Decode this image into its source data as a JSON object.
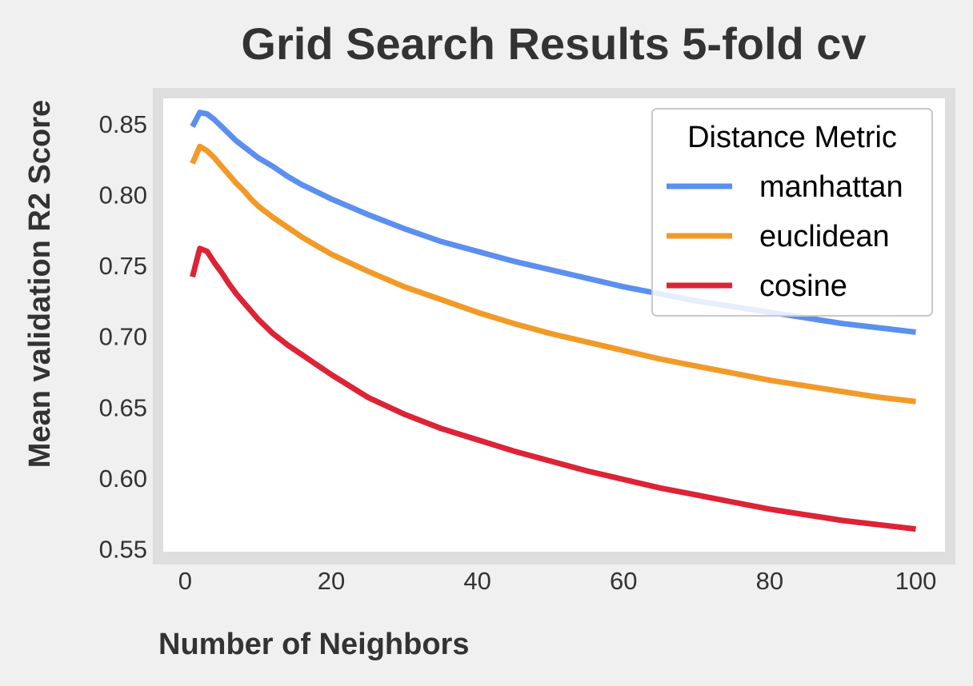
{
  "chart_data": {
    "type": "line",
    "title": "Grid Search Results 5-fold cv",
    "xlabel": "Number of Neighbors",
    "ylabel": "Mean validation R2 Score",
    "xlim": [
      -3,
      104
    ],
    "ylim": [
      0.548,
      0.868
    ],
    "xticks": [
      0,
      20,
      40,
      60,
      80,
      100
    ],
    "xtick_labels": [
      "0",
      "20",
      "40",
      "60",
      "80",
      "100"
    ],
    "yticks": [
      0.55,
      0.6,
      0.65,
      0.7,
      0.75,
      0.8,
      0.85
    ],
    "ytick_labels": [
      "0.55",
      "0.60",
      "0.65",
      "0.70",
      "0.75",
      "0.80",
      "0.85"
    ],
    "grid": false,
    "legend": {
      "title": "Distance Metric",
      "position": "top-right"
    },
    "x": [
      1,
      2,
      3,
      4,
      5,
      6,
      7,
      8,
      9,
      10,
      12,
      14,
      16,
      18,
      20,
      25,
      30,
      35,
      40,
      45,
      50,
      55,
      60,
      65,
      70,
      75,
      80,
      85,
      90,
      95,
      100
    ],
    "series": [
      {
        "name": "manhattan",
        "color": "#5b8ff0",
        "values": [
          0.848,
          0.858,
          0.857,
          0.853,
          0.848,
          0.843,
          0.838,
          0.834,
          0.83,
          0.826,
          0.82,
          0.813,
          0.807,
          0.802,
          0.797,
          0.786,
          0.776,
          0.767,
          0.76,
          0.753,
          0.747,
          0.741,
          0.735,
          0.73,
          0.725,
          0.721,
          0.717,
          0.713,
          0.709,
          0.706,
          0.703
        ]
      },
      {
        "name": "euclidean",
        "color": "#f29a28",
        "values": [
          0.822,
          0.834,
          0.831,
          0.826,
          0.82,
          0.814,
          0.808,
          0.803,
          0.797,
          0.792,
          0.784,
          0.777,
          0.77,
          0.764,
          0.758,
          0.746,
          0.735,
          0.726,
          0.717,
          0.709,
          0.702,
          0.696,
          0.69,
          0.684,
          0.679,
          0.674,
          0.669,
          0.665,
          0.661,
          0.657,
          0.654
        ]
      },
      {
        "name": "cosine",
        "color": "#dd2335",
        "values": [
          0.742,
          0.762,
          0.76,
          0.752,
          0.745,
          0.737,
          0.73,
          0.724,
          0.718,
          0.712,
          0.702,
          0.694,
          0.687,
          0.68,
          0.673,
          0.657,
          0.645,
          0.635,
          0.627,
          0.619,
          0.612,
          0.605,
          0.599,
          0.593,
          0.588,
          0.583,
          0.578,
          0.574,
          0.57,
          0.567,
          0.564
        ]
      }
    ]
  }
}
